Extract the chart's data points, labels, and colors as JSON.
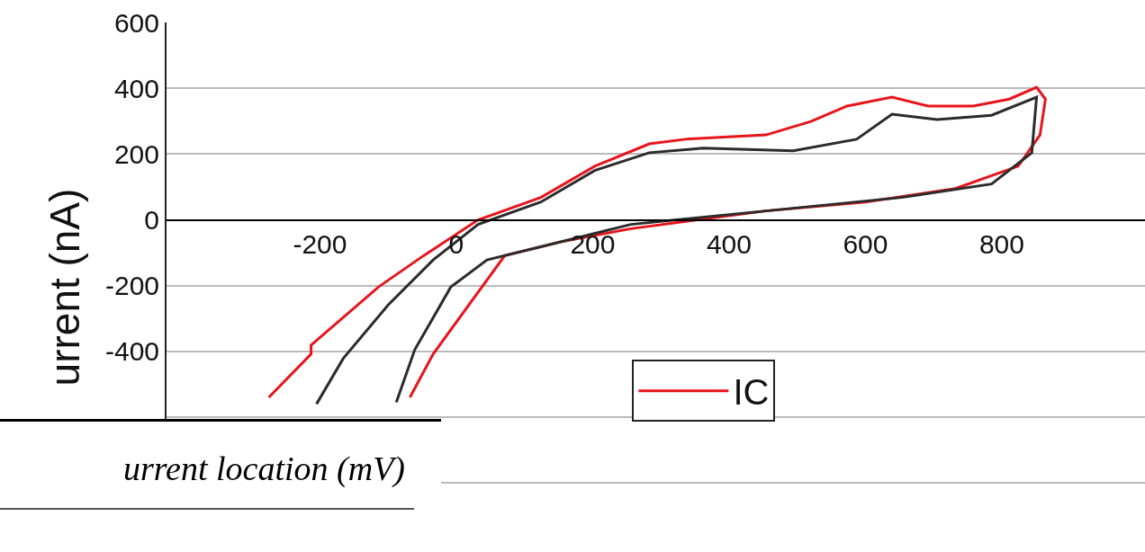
{
  "chart_data": {
    "type": "line",
    "ylabel": "urrent (nA)",
    "xlim": [
      -425,
      1010
    ],
    "ylim": [
      -1010,
      600
    ],
    "xticks": [
      -200,
      0,
      200,
      400,
      600,
      800
    ],
    "yticks": [
      600,
      400,
      200,
      0,
      -200,
      -400,
      {
        "value": -600,
        "label": null
      },
      {
        "value": -800,
        "label": null
      }
    ],
    "grid": "y",
    "legend": "bottom right",
    "marker": "none",
    "line_style": "solid",
    "annotations": [
      "urrent location (mV)"
    ],
    "series": [
      {
        "name": "IC",
        "color": "#e8141c",
        "x": [
          -275,
          -213,
          -213,
          -114,
          -48,
          32,
          124,
          203,
          283,
          336,
          454,
          520,
          573,
          639,
          692,
          758,
          811,
          851,
          864,
          856,
          824,
          732,
          600,
          454,
          256,
          151,
          71,
          -34,
          -68
        ],
        "values": [
          -540,
          -408,
          -381,
          -204,
          -109,
          0,
          68,
          163,
          231,
          245,
          258,
          299,
          346,
          373,
          346,
          346,
          367,
          403,
          367,
          258,
          163,
          95,
          54,
          27,
          -27,
          -68,
          -109,
          -408,
          -540
        ]
      },
      {
        "color": "#2b2b2b",
        "x": [
          -205,
          -166,
          -100,
          -34,
          32,
          124,
          203,
          283,
          362,
          494,
          587,
          639,
          705,
          785,
          851,
          844,
          785,
          653,
          454,
          256,
          124,
          45,
          -8,
          -61,
          -88
        ],
        "values": [
          -560,
          -422,
          -259,
          -122,
          -14,
          54,
          150,
          204,
          218,
          210,
          245,
          321,
          305,
          318,
          373,
          204,
          109,
          68,
          27,
          -14,
          -82,
          -122,
          -204,
          -395,
          -555
        ]
      }
    ]
  }
}
